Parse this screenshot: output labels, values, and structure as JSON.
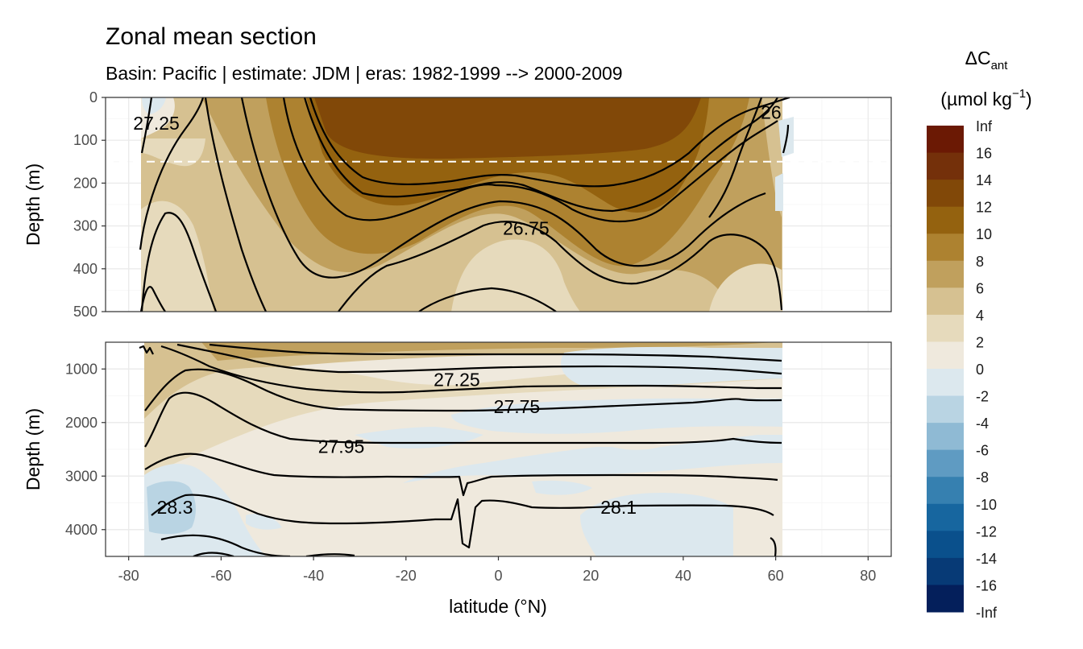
{
  "chart_data": {
    "type": "heatmap",
    "title": "Zonal mean section",
    "subtitle": "Basin: Pacific | estimate: JDM  | eras: 1982-1999 --> 2000-2009",
    "xlabel": "latitude (°N)",
    "x_ticks": [
      -80,
      -60,
      -40,
      -20,
      0,
      20,
      40,
      60,
      80
    ],
    "xlim": [
      -85,
      85
    ],
    "data_lat_range": [
      -77,
      65
    ],
    "panels": [
      {
        "name": "upper",
        "ylabel": "Depth (m)",
        "ylim": [
          0,
          500
        ],
        "y_ticks": [
          0,
          100,
          200,
          300,
          400,
          500
        ],
        "reference_depth_line": 150,
        "contour_labels": [
          {
            "text": "27.25",
            "lat": -74,
            "depth": 60
          },
          {
            "text": "26.75",
            "lat": 6,
            "depth": 305
          },
          {
            "text": "26",
            "lat": 59,
            "depth": 35
          }
        ]
      },
      {
        "name": "lower",
        "ylabel": "Depth (m)",
        "ylim": [
          500,
          4500
        ],
        "y_ticks": [
          1000,
          2000,
          3000,
          4000
        ],
        "contour_labels": [
          {
            "text": "27.25",
            "lat": -9,
            "depth": 1200
          },
          {
            "text": "27.75",
            "lat": 4,
            "depth": 1700
          },
          {
            "text": "27.95",
            "lat": -34,
            "depth": 2450
          },
          {
            "text": "28.3",
            "lat": -70,
            "depth": 3580
          },
          {
            "text": "28.1",
            "lat": 26,
            "depth": 3580
          }
        ]
      }
    ],
    "legend": {
      "title_main": "ΔC",
      "title_sub": "ant",
      "units_main": "(µmol kg",
      "units_sup": "−1",
      "units_close": ")",
      "breaks": [
        "Inf",
        "16",
        "14",
        "12",
        "10",
        "8",
        "6",
        "4",
        "2",
        "0",
        "-2",
        "-4",
        "-6",
        "-8",
        "-10",
        "-12",
        "-14",
        "-16",
        "-Inf"
      ],
      "colors": [
        "#6b1904",
        "#74300a",
        "#814808",
        "#94620f",
        "#ad8230",
        "#c0a05d",
        "#d6c191",
        "#e6dabc",
        "#efe9dd",
        "#dce8ee",
        "#b9d4e3",
        "#8fbad4",
        "#5f9bc2",
        "#3680b0",
        "#17669f",
        "#0a508c",
        "#073a76",
        "#041f5b"
      ]
    }
  }
}
